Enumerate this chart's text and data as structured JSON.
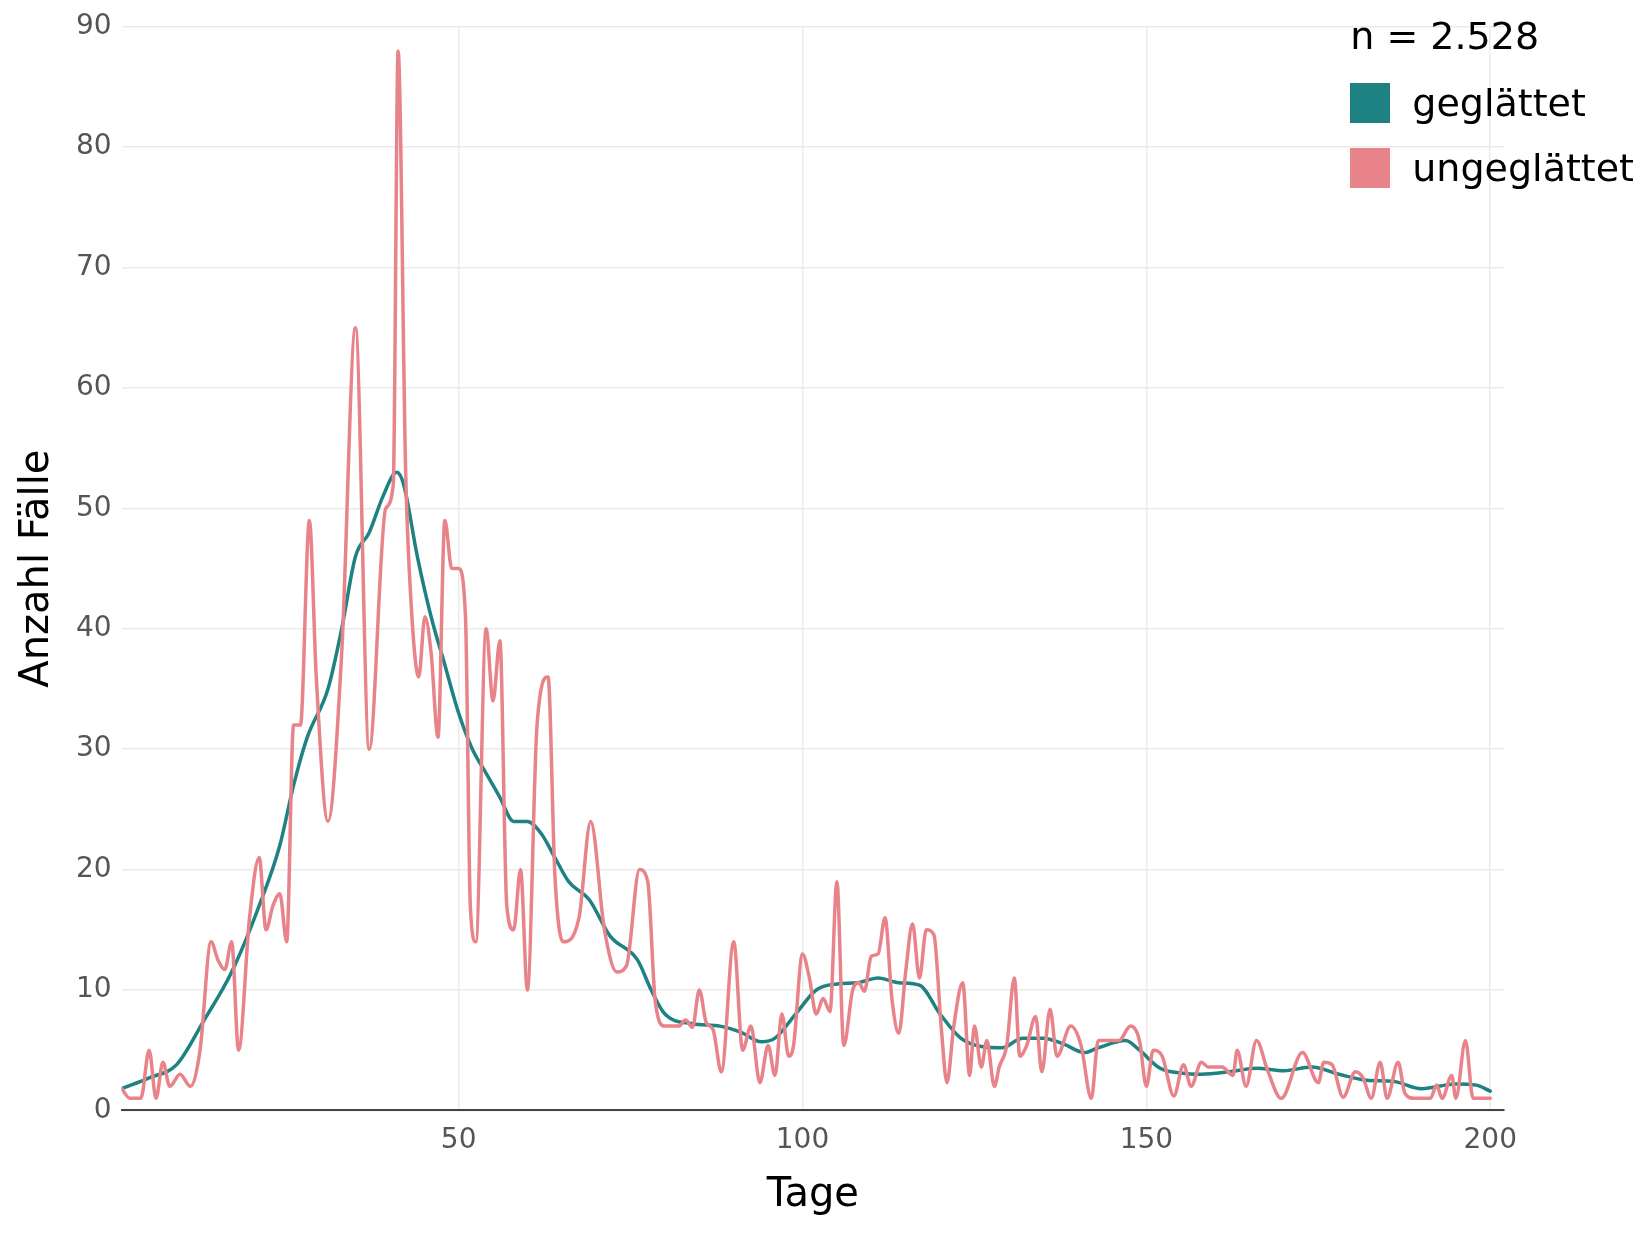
{
  "chart_data": {
    "type": "line",
    "xlabel": "Tage",
    "ylabel": "Anzahl Fälle",
    "legend_title": "n = 2.528",
    "legend": "top right",
    "grid": true,
    "marker": "none",
    "xlim": [
      1,
      202
    ],
    "xticks": [
      50,
      100,
      150,
      200
    ],
    "ylim": [
      0,
      90
    ],
    "yticks": [
      0,
      10,
      20,
      30,
      40,
      50,
      60,
      70,
      80,
      90
    ],
    "series": [
      {
        "name": "geglättet",
        "color": "#1f8282",
        "x": [
          1,
          5,
          9,
          13,
          17,
          21,
          24,
          26,
          28,
          31,
          33,
          35,
          37,
          39,
          41,
          42,
          44,
          46,
          48,
          50,
          52,
          54,
          56,
          58,
          60,
          62,
          64,
          66,
          69,
          72,
          76,
          78,
          80,
          84,
          88,
          91,
          94,
          96,
          99,
          102,
          105,
          108,
          111,
          114,
          117,
          120,
          123,
          126,
          129,
          132,
          135,
          138,
          141,
          143,
          147,
          149,
          152,
          155,
          158,
          162,
          166,
          170,
          174,
          178,
          182,
          186,
          190,
          195,
          198,
          200
        ],
        "values": [
          1.8,
          2.7,
          3.8,
          7.5,
          11.5,
          17,
          22,
          27,
          31,
          35,
          40,
          46,
          48,
          51,
          53,
          52,
          46,
          41,
          37,
          33,
          30,
          28,
          26,
          24,
          24,
          23,
          21,
          19,
          17.5,
          14.5,
          12.5,
          10,
          8,
          7.2,
          7,
          6.5,
          5.7,
          6,
          8,
          10,
          10.5,
          10.6,
          11,
          10.6,
          10.4,
          8,
          6,
          5.3,
          5.2,
          6,
          6,
          5.5,
          4.8,
          5.2,
          5.8,
          5,
          3.5,
          3.1,
          3,
          3.2,
          3.5,
          3.3,
          3.6,
          3,
          2.5,
          2.4,
          1.8,
          2.2,
          2.1,
          1.6
        ]
      },
      {
        "name": "ungeglättet",
        "color": "#e8838a",
        "x": [
          1,
          2.2,
          3.8,
          5,
          6,
          7,
          8,
          9.5,
          11,
          12.4,
          14,
          15,
          16,
          17,
          18,
          19.6,
          21,
          22,
          23,
          24,
          25,
          26,
          27,
          28.3,
          29.3,
          31,
          33,
          35,
          37,
          39.4,
          40.5,
          41.2,
          42.3,
          43,
          44.2,
          45.1,
          46,
          47,
          48,
          49,
          50,
          51,
          51.7,
          52.5,
          54,
          55,
          56,
          57,
          58,
          59,
          60,
          61.4,
          63,
          64,
          65.2,
          67.5,
          69.2,
          71.2,
          73,
          74.4,
          76.3,
          77.5,
          78.6,
          80,
          82,
          83,
          84,
          85,
          86,
          87,
          88.2,
          90,
          91.3,
          92.5,
          93.8,
          95,
          96,
          97,
          98,
          98.7,
          100,
          101,
          102,
          103,
          104,
          105,
          106,
          107.3,
          108.2,
          109,
          110,
          111,
          112,
          113,
          114,
          115,
          116,
          117,
          118,
          119.1,
          120.2,
          121,
          122,
          123.3,
          124.3,
          125,
          126,
          126.8,
          127.9,
          128.6,
          129.7,
          130.8,
          131.6,
          132.6,
          133.9,
          134.8,
          136,
          137,
          139,
          140.5,
          142,
          143,
          146,
          147.7,
          149,
          150,
          151,
          152.3,
          154,
          155.4,
          156.5,
          158,
          159,
          161,
          162.6,
          163.2,
          164.5,
          166,
          167.7,
          169.6,
          172.7,
          175,
          175.8,
          177,
          178.6,
          180.4,
          181.5,
          182.7,
          184,
          185,
          186.6,
          187.6,
          189,
          191.3,
          192.2,
          193,
          194.4,
          195,
          196.4,
          197.5,
          200
        ],
        "values": [
          1.8,
          1,
          1,
          5,
          1,
          4,
          2,
          3,
          2,
          5,
          14,
          12.5,
          11.7,
          14,
          5,
          16,
          21,
          15,
          17,
          18,
          14,
          32,
          32,
          49,
          36,
          24,
          38,
          65,
          30,
          50,
          52,
          88,
          53,
          43,
          36,
          41,
          38,
          31,
          49,
          45,
          45,
          41,
          17,
          14,
          40,
          34,
          39,
          17,
          15,
          20,
          10,
          32,
          36,
          19.5,
          14,
          16,
          24,
          15,
          11.5,
          12,
          20,
          19,
          9,
          7,
          7,
          7.5,
          6.9,
          10,
          7.3,
          6.7,
          3.2,
          14,
          5,
          7,
          2.3,
          5.4,
          2.9,
          8,
          4.5,
          5.4,
          13,
          11,
          8,
          9.3,
          8.2,
          19,
          5.4,
          10,
          10.6,
          9.9,
          12.8,
          13,
          16,
          9.3,
          6.4,
          11.5,
          15.5,
          11,
          15,
          14.6,
          6.7,
          2.3,
          7,
          10.6,
          2.9,
          7,
          3.6,
          5.8,
          2,
          3.6,
          5.4,
          11,
          4.5,
          5.4,
          7.8,
          3.2,
          8.4,
          4.5,
          7,
          5.4,
          1,
          5.8,
          5.8,
          7,
          5.8,
          2,
          5,
          4.5,
          1.2,
          3.8,
          2,
          4,
          3.6,
          3.6,
          2.9,
          5,
          2,
          5.8,
          3.2,
          1,
          4.8,
          2.3,
          4,
          3.8,
          1.1,
          3.2,
          2.7,
          1,
          4,
          1,
          4,
          1.4,
          1,
          1,
          2.1,
          1,
          2.9,
          1,
          5.8,
          1,
          1
        ]
      }
    ]
  }
}
